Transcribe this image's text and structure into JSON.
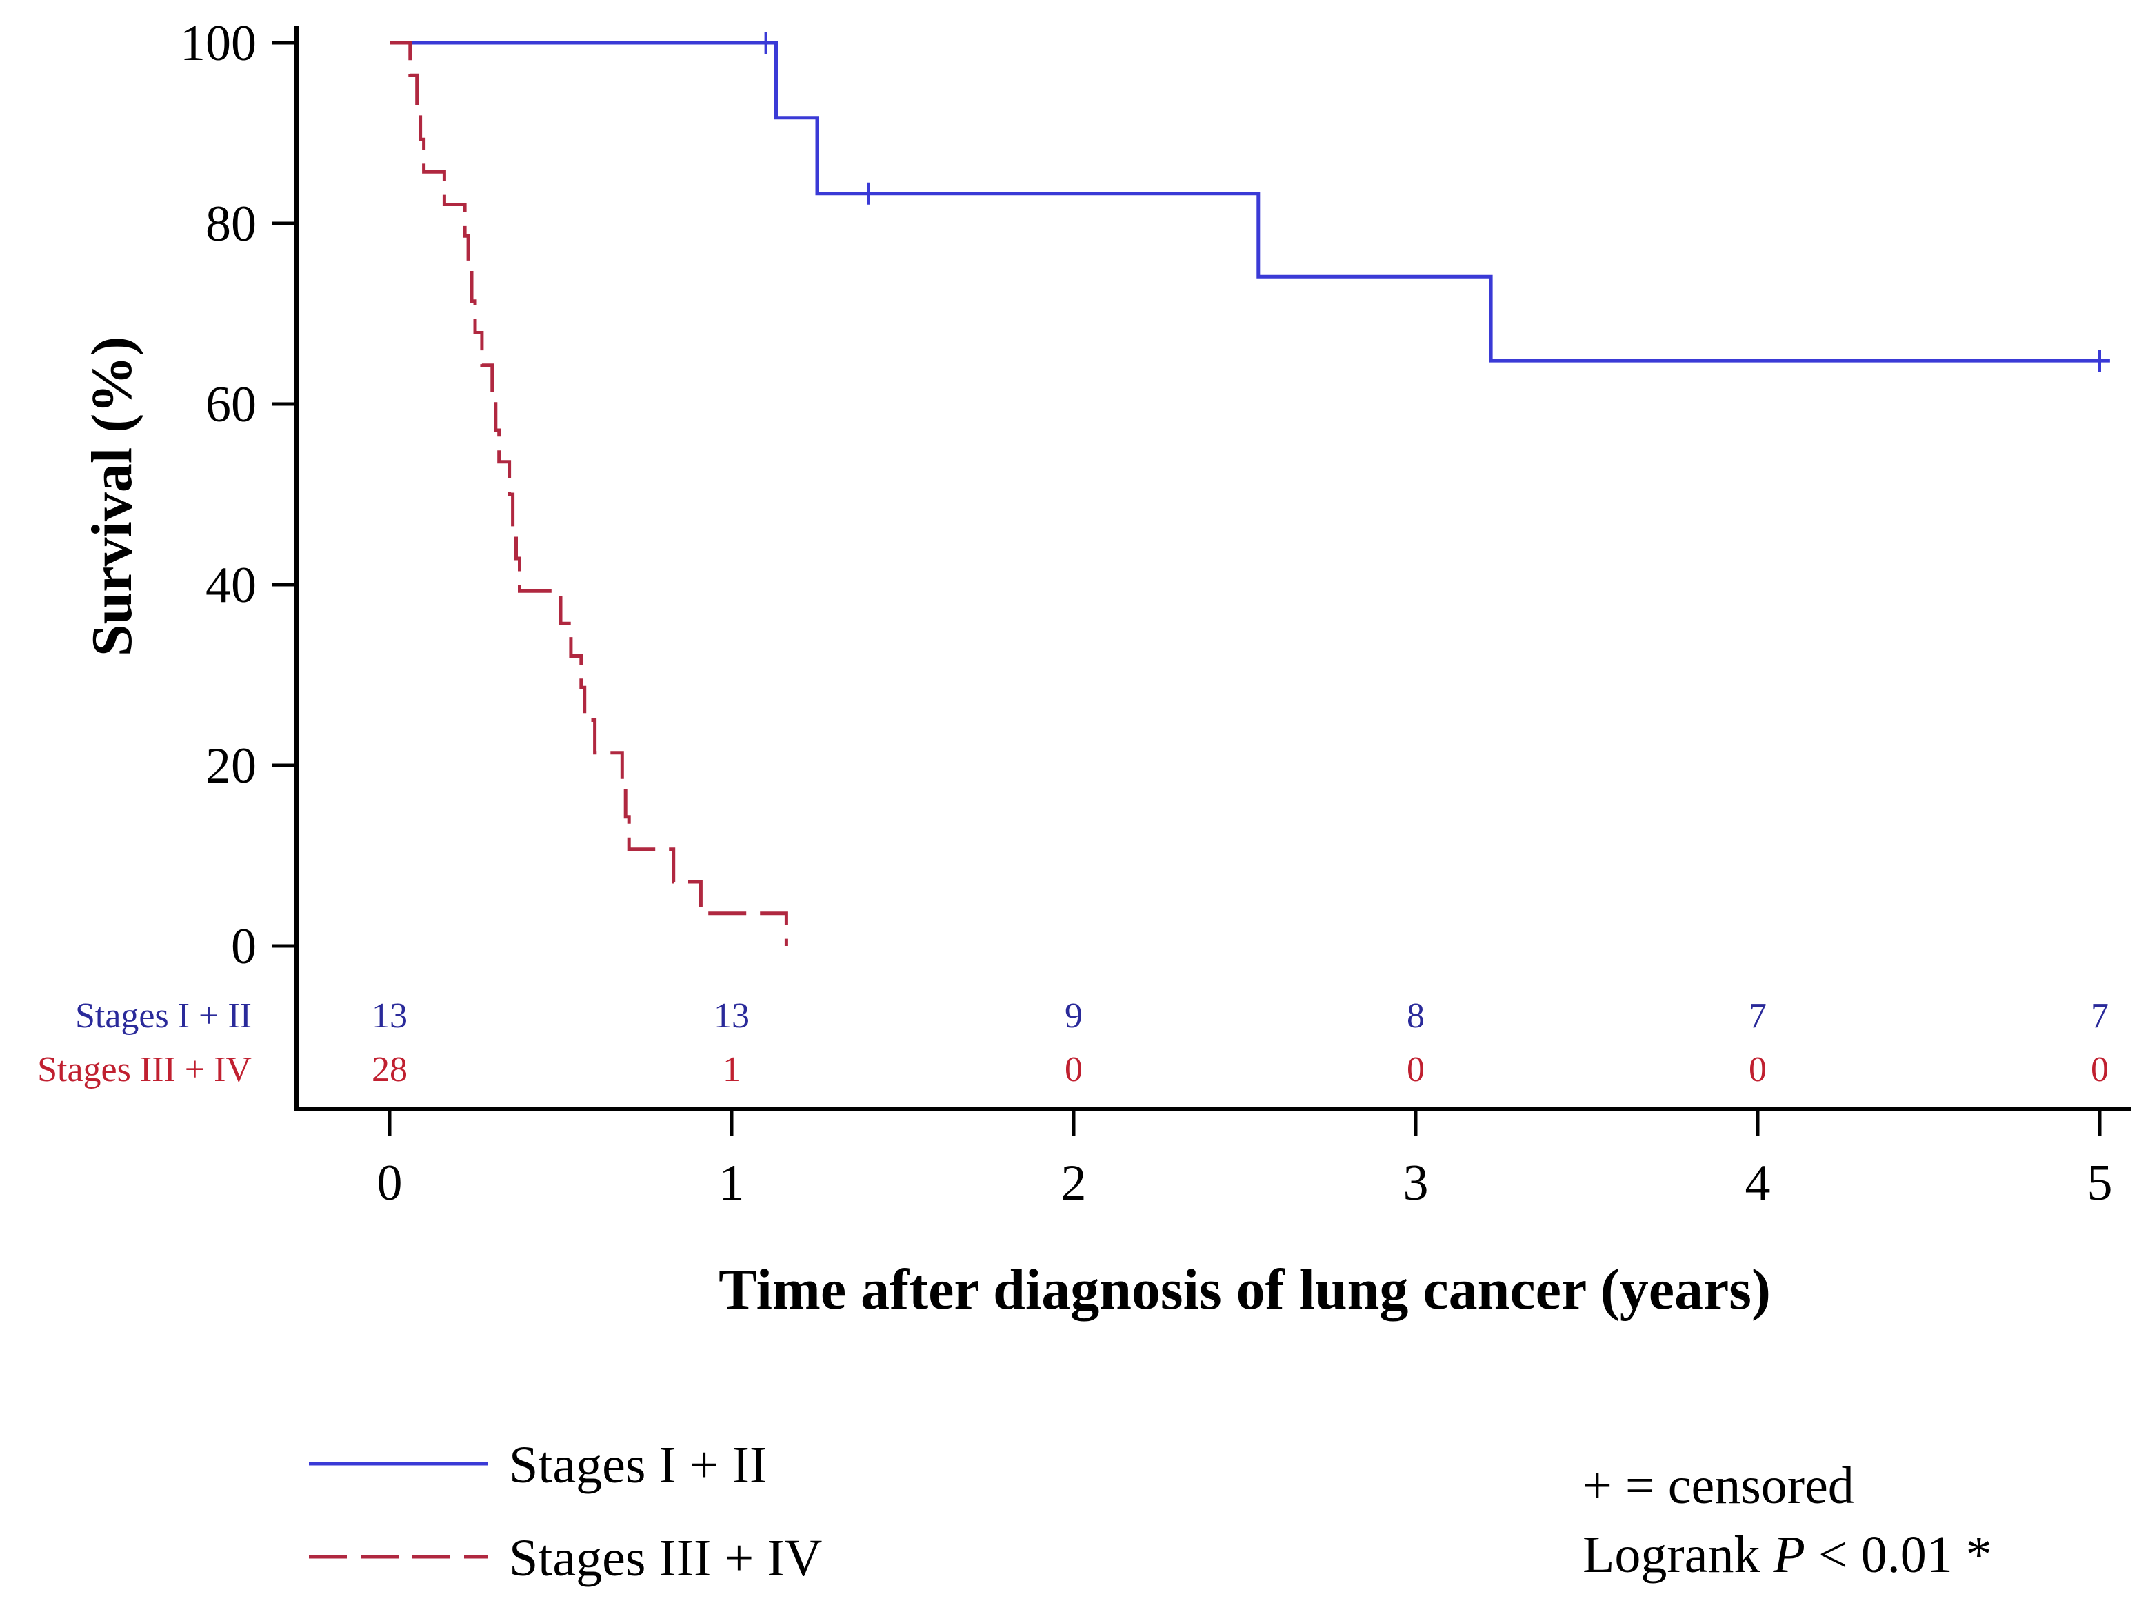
{
  "chart_data": {
    "type": "line",
    "subtype": "kaplan-meier",
    "title": "",
    "xlabel": "Time after diagnosis of lung cancer (years)",
    "ylabel": "Survival (%)",
    "xlim": [
      0,
      5
    ],
    "ylim": [
      0,
      100
    ],
    "xticks": [
      0,
      1,
      2,
      3,
      4,
      5
    ],
    "yticks": [
      0,
      20,
      40,
      60,
      80,
      100
    ],
    "grid": false,
    "legend_position": "bottom-left",
    "series": [
      {
        "name": "Stages I + II",
        "color": "#3a3ad6",
        "line_style": "solid",
        "points": [
          [
            0,
            100
          ],
          [
            1.13,
            100
          ],
          [
            1.13,
            91.7
          ],
          [
            1.25,
            91.7
          ],
          [
            1.25,
            83.3
          ],
          [
            2.54,
            83.3
          ],
          [
            2.54,
            74.1
          ],
          [
            3.22,
            74.1
          ],
          [
            3.22,
            64.8
          ],
          [
            5.03,
            64.8
          ]
        ],
        "censored": [
          [
            1.1,
            100
          ],
          [
            1.4,
            83.3
          ],
          [
            5.0,
            64.8
          ]
        ]
      },
      {
        "name": "Stages III + IV",
        "color": "#b02840",
        "line_style": "dashed",
        "points": [
          [
            0,
            100
          ],
          [
            0.06,
            100
          ],
          [
            0.06,
            96.4
          ],
          [
            0.08,
            96.4
          ],
          [
            0.08,
            92.9
          ],
          [
            0.09,
            92.9
          ],
          [
            0.09,
            89.3
          ],
          [
            0.1,
            89.3
          ],
          [
            0.1,
            85.7
          ],
          [
            0.16,
            85.7
          ],
          [
            0.16,
            82.1
          ],
          [
            0.22,
            82.1
          ],
          [
            0.22,
            78.6
          ],
          [
            0.23,
            78.6
          ],
          [
            0.23,
            75.0
          ],
          [
            0.24,
            75.0
          ],
          [
            0.24,
            71.4
          ],
          [
            0.25,
            71.4
          ],
          [
            0.25,
            67.9
          ],
          [
            0.27,
            67.9
          ],
          [
            0.27,
            64.3
          ],
          [
            0.3,
            64.3
          ],
          [
            0.3,
            60.7
          ],
          [
            0.31,
            60.7
          ],
          [
            0.31,
            57.1
          ],
          [
            0.32,
            57.1
          ],
          [
            0.32,
            53.6
          ],
          [
            0.35,
            53.6
          ],
          [
            0.35,
            50.0
          ],
          [
            0.36,
            50.0
          ],
          [
            0.36,
            46.4
          ],
          [
            0.37,
            46.4
          ],
          [
            0.37,
            42.9
          ],
          [
            0.38,
            42.9
          ],
          [
            0.38,
            39.3
          ],
          [
            0.5,
            39.3
          ],
          [
            0.5,
            35.7
          ],
          [
            0.53,
            35.7
          ],
          [
            0.53,
            32.1
          ],
          [
            0.56,
            32.1
          ],
          [
            0.56,
            28.6
          ],
          [
            0.57,
            28.6
          ],
          [
            0.57,
            25.0
          ],
          [
            0.6,
            25.0
          ],
          [
            0.6,
            21.4
          ],
          [
            0.68,
            21.4
          ],
          [
            0.68,
            17.9
          ],
          [
            0.69,
            17.9
          ],
          [
            0.69,
            14.3
          ],
          [
            0.7,
            14.3
          ],
          [
            0.7,
            10.7
          ],
          [
            0.83,
            10.7
          ],
          [
            0.83,
            7.1
          ],
          [
            0.91,
            7.1
          ],
          [
            0.91,
            3.6
          ],
          [
            1.16,
            3.6
          ],
          [
            1.16,
            0
          ]
        ],
        "censored": []
      }
    ],
    "risk_table": {
      "times": [
        "0",
        "1",
        "2",
        "3",
        "4",
        "5"
      ],
      "rows": [
        {
          "label": "Stages I + II",
          "color": "#2a2a9a",
          "values": [
            "13",
            "13",
            "9",
            "8",
            "7",
            "7"
          ]
        },
        {
          "label": "Stages III + IV",
          "color": "#c02030",
          "values": [
            "28",
            "1",
            "0",
            "0",
            "0",
            "0"
          ]
        }
      ]
    },
    "annotations": {
      "censored_note": "+ = censored",
      "logrank_prefix": "Logrank ",
      "logrank_p": "P",
      "logrank_suffix": " < 0.01 *"
    }
  }
}
